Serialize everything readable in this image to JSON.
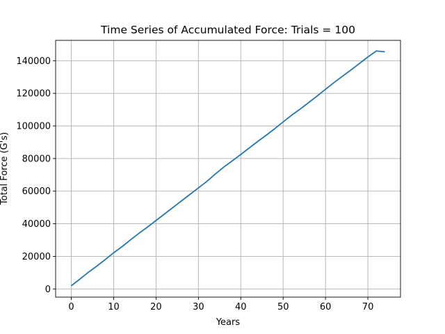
{
  "chart_data": {
    "type": "line",
    "title": "Time Series of Accumulated Force: Trials = 100",
    "xlabel": "Years",
    "ylabel": "Total Force (G's)",
    "xlim": [
      -3.7,
      77.7
    ],
    "ylim": [
      -5000,
      152500
    ],
    "xticks": [
      0,
      10,
      20,
      30,
      40,
      50,
      60,
      70
    ],
    "yticks": [
      0,
      20000,
      40000,
      60000,
      80000,
      100000,
      120000,
      140000
    ],
    "grid": true,
    "legend": "none",
    "colors": {
      "line": "#1f77b4"
    },
    "series": [
      {
        "x": [
          0,
          2,
          4,
          6,
          8,
          10,
          12,
          14,
          16,
          18,
          20,
          22,
          24,
          26,
          28,
          30,
          32,
          34,
          36,
          38,
          40,
          42,
          44,
          46,
          48,
          50,
          52,
          54,
          56,
          58,
          60,
          62,
          64,
          66,
          68,
          70,
          72,
          74
        ],
        "values": [
          2000,
          6000,
          10200,
          14000,
          18000,
          22200,
          26000,
          30200,
          34200,
          38000,
          42000,
          46000,
          50000,
          54000,
          58000,
          62000,
          66000,
          70500,
          74800,
          78600,
          82500,
          86500,
          90500,
          94300,
          98300,
          102500,
          106600,
          110300,
          114300,
          118300,
          122500,
          126600,
          130500,
          134300,
          138300,
          142300,
          146000,
          145500
        ]
      }
    ]
  }
}
